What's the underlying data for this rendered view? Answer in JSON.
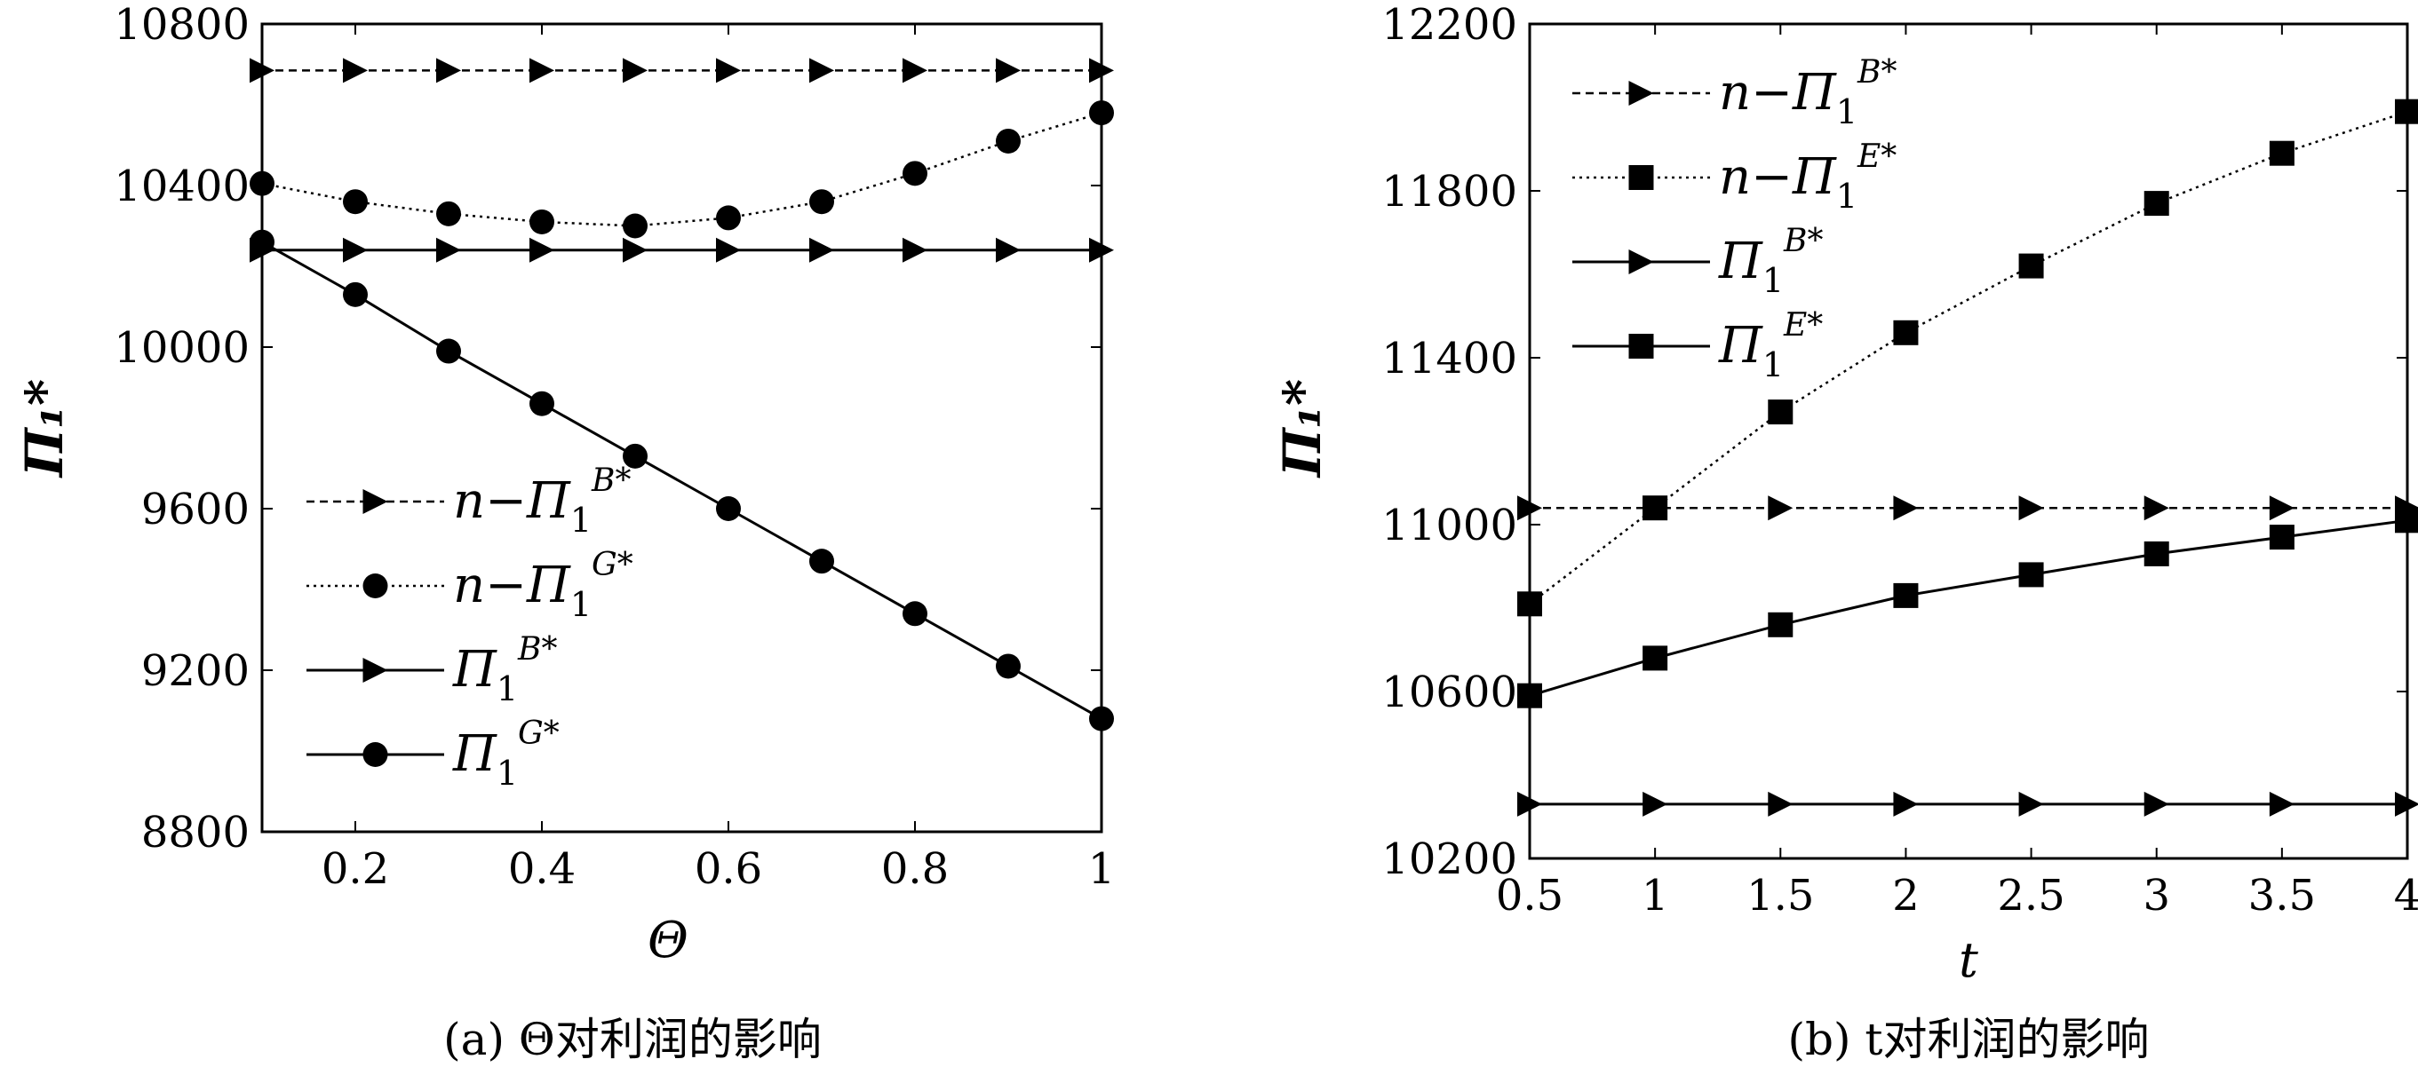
{
  "chart_data": [
    {
      "type": "line",
      "caption": "(a) Θ对利润的影响",
      "xlabel": "Θ",
      "ylabel": "Π₁*",
      "xlim": [
        0.1,
        1
      ],
      "ylim": [
        8800,
        10800
      ],
      "x_ticks": [
        0.2,
        0.4,
        0.6,
        0.8,
        1
      ],
      "x_tick_labels": [
        "0.2",
        "0.4",
        "0.6",
        "0.8",
        "1"
      ],
      "y_ticks": [
        8800,
        9200,
        9600,
        10000,
        10400,
        10800
      ],
      "y_tick_labels": [
        "8800",
        "9200",
        "9600",
        "10000",
        "10400",
        "10800"
      ],
      "x": [
        0.1,
        0.2,
        0.3,
        0.4,
        0.5,
        0.6,
        0.7,
        0.8,
        0.9,
        1.0
      ],
      "series": [
        {
          "name": "n−Π₁B*",
          "marker": "triangle",
          "style": "dashed",
          "values": [
            10685,
            10685,
            10685,
            10685,
            10685,
            10685,
            10685,
            10685,
            10685,
            10685
          ]
        },
        {
          "name": "n−Π₁G*",
          "marker": "circle",
          "style": "dotted",
          "values": [
            10405,
            10360,
            10330,
            10310,
            10300,
            10320,
            10360,
            10430,
            10510,
            10580
          ]
        },
        {
          "name": "Π₁B*",
          "marker": "triangle",
          "style": "solid",
          "values": [
            10240,
            10240,
            10240,
            10240,
            10240,
            10240,
            10240,
            10240,
            10240,
            10240
          ]
        },
        {
          "name": "Π₁G*",
          "marker": "circle",
          "style": "solid",
          "values": [
            10260,
            10130,
            9990,
            9860,
            9730,
            9600,
            9470,
            9340,
            9210,
            9080
          ]
        }
      ],
      "grid": false,
      "legend_position": "center-left"
    },
    {
      "type": "line",
      "caption": "(b) t对利润的影响",
      "xlabel": "t",
      "ylabel": "Π₁*",
      "xlim": [
        0.5,
        4
      ],
      "ylim": [
        10200,
        12200
      ],
      "x_ticks": [
        0.5,
        1,
        1.5,
        2,
        2.5,
        3,
        3.5,
        4
      ],
      "x_tick_labels": [
        "0.5",
        "1",
        "1.5",
        "2",
        "2.5",
        "3",
        "3.5",
        "4"
      ],
      "y_ticks": [
        10200,
        10600,
        11000,
        11400,
        11800,
        12200
      ],
      "y_tick_labels": [
        "10200",
        "10600",
        "11000",
        "11400",
        "11800",
        "12200"
      ],
      "x": [
        0.5,
        1,
        1.5,
        2,
        2.5,
        3,
        3.5,
        4
      ],
      "series": [
        {
          "name": "n−Π₁B*",
          "marker": "triangle",
          "style": "dashed",
          "values": [
            11040,
            11040,
            11040,
            11040,
            11040,
            11040,
            11040,
            11040
          ]
        },
        {
          "name": "n−Π₁E*",
          "marker": "square",
          "style": "dotted",
          "values": [
            10810,
            11040,
            11270,
            11460,
            11620,
            11770,
            11890,
            11990
          ]
        },
        {
          "name": "Π₁B*",
          "marker": "triangle",
          "style": "solid",
          "values": [
            10330,
            10330,
            10330,
            10330,
            10330,
            10330,
            10330,
            10330
          ]
        },
        {
          "name": "Π₁E*",
          "marker": "square",
          "style": "solid",
          "values": [
            10590,
            10680,
            10760,
            10830,
            10880,
            10930,
            10970,
            11010
          ]
        }
      ],
      "grid": false,
      "legend_position": "top-left"
    }
  ]
}
